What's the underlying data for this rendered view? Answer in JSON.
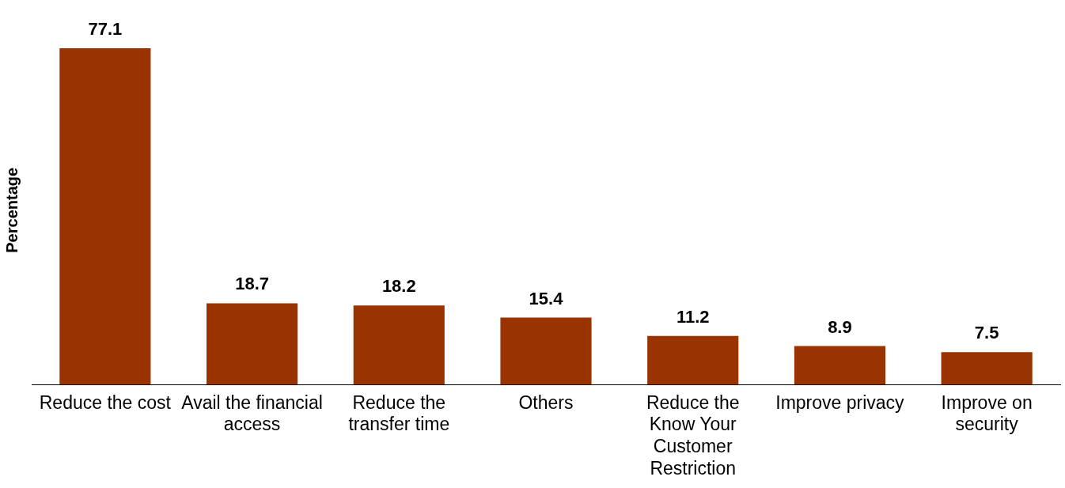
{
  "chart_data": {
    "type": "bar",
    "ylabel": "Percentage",
    "categories": [
      "Reduce the cost",
      "Avail the financial access",
      "Reduce the transfer time",
      "Others",
      "Reduce the Know Your Customer Restriction",
      "Improve privacy",
      "Improve on security"
    ],
    "values": [
      77.1,
      18.7,
      18.2,
      15.4,
      11.2,
      8.9,
      7.5
    ],
    "color": "#993300",
    "data_labels": true,
    "grid": false,
    "legend": false,
    "tick_labels": "x"
  }
}
